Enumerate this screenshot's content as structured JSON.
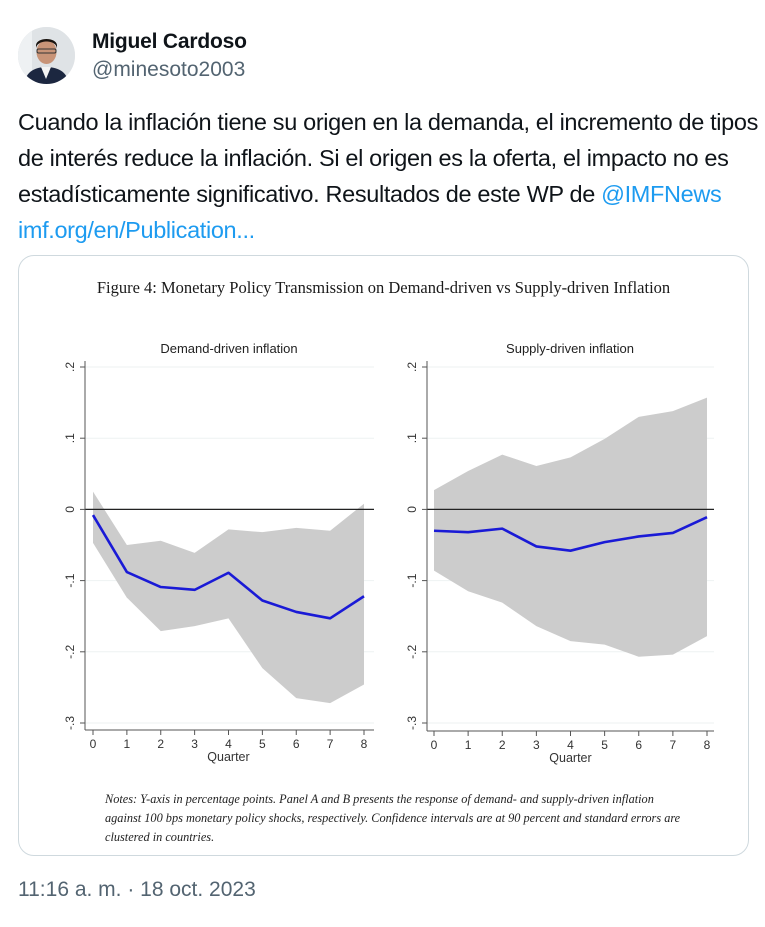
{
  "author": {
    "name": "Miguel Cardoso",
    "handle": "@minesoto2003",
    "avatar_icon": "user-avatar"
  },
  "tweet": {
    "text_parts": [
      {
        "type": "text",
        "value": "Cuando la inflación tiene su origen en la demanda, el incremento de tipos de interés reduce la inflación. Si el origen es la oferta, el impacto no es estadísticamente significativo. Resultados de este WP de "
      },
      {
        "type": "mention",
        "value": "@IMFNews"
      },
      {
        "type": "text",
        "value": " "
      },
      {
        "type": "link",
        "value": "imf.org/en/Publication..."
      }
    ],
    "timestamp": "11:16 a. m. · 18 oct. 2023"
  },
  "colors": {
    "link": "#1d9bf0",
    "line": "#1a1ad6",
    "band": "#cccccc",
    "muted_text": "#536471"
  },
  "figure": {
    "title": "Figure 4: Monetary Policy Transmission on Demand-driven vs Supply-driven Inflation",
    "notes": "Notes: Y-axis in percentage points. Panel A and B presents the response of demand- and supply-driven inflation against 100 bps monetary policy shocks, respectively. Confidence intervals are at 90 percent and standard errors are clustered in countries."
  },
  "chart_data": [
    {
      "type": "area",
      "title": "Demand-driven inflation",
      "xlabel": "Quarter",
      "ylabel": "",
      "x": [
        0,
        1,
        2,
        3,
        4,
        5,
        6,
        7,
        8
      ],
      "xticks": [
        "0",
        "1",
        "2",
        "3",
        "4",
        "5",
        "6",
        "7",
        "8"
      ],
      "yticks": [
        "-.3",
        "-.2",
        "-.1",
        "0",
        ".1",
        ".2"
      ],
      "ytick_values": [
        -0.3,
        -0.2,
        -0.1,
        0,
        0.1,
        0.2
      ],
      "ylim": [
        -0.3,
        0.2
      ],
      "xlim": [
        0,
        8
      ],
      "grid": true,
      "zero_line": true,
      "series": [
        {
          "name": "Point estimate",
          "type": "line",
          "values": [
            -0.008,
            -0.088,
            -0.109,
            -0.113,
            -0.089,
            -0.128,
            -0.144,
            -0.153,
            -0.122
          ]
        },
        {
          "name": "90% CI upper",
          "type": "band_upper",
          "values": [
            0.025,
            -0.05,
            -0.044,
            -0.061,
            -0.028,
            -0.032,
            -0.026,
            -0.03,
            0.008
          ]
        },
        {
          "name": "90% CI lower",
          "type": "band_lower",
          "values": [
            -0.047,
            -0.124,
            -0.171,
            -0.164,
            -0.153,
            -0.223,
            -0.265,
            -0.272,
            -0.246
          ]
        }
      ]
    },
    {
      "type": "area",
      "title": "Supply-driven inflation",
      "xlabel": "Quarter",
      "ylabel": "",
      "x": [
        0,
        1,
        2,
        3,
        4,
        5,
        6,
        7,
        8
      ],
      "xticks": [
        "0",
        "1",
        "2",
        "3",
        "4",
        "5",
        "6",
        "7",
        "8"
      ],
      "yticks": [
        "-.3",
        "-.2",
        "-.1",
        "0",
        ".1",
        ".2"
      ],
      "ytick_values": [
        -0.3,
        -0.2,
        -0.1,
        0,
        0.1,
        0.2
      ],
      "ylim": [
        -0.3,
        0.2
      ],
      "xlim": [
        0,
        8
      ],
      "grid": true,
      "zero_line": true,
      "series": [
        {
          "name": "Point estimate",
          "type": "line",
          "values": [
            -0.03,
            -0.032,
            -0.027,
            -0.052,
            -0.058,
            -0.046,
            -0.038,
            -0.033,
            -0.011
          ]
        },
        {
          "name": "90% CI upper",
          "type": "band_upper",
          "values": [
            0.027,
            0.054,
            0.077,
            0.061,
            0.073,
            0.099,
            0.13,
            0.138,
            0.157
          ]
        },
        {
          "name": "90% CI lower",
          "type": "band_lower",
          "values": [
            -0.086,
            -0.115,
            -0.131,
            -0.164,
            -0.185,
            -0.19,
            -0.207,
            -0.204,
            -0.178
          ]
        }
      ]
    }
  ]
}
